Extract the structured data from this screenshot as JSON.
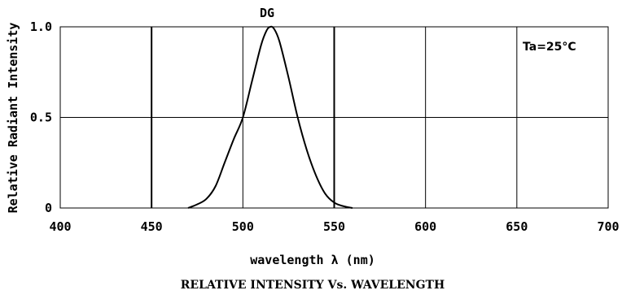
{
  "chart_data": {
    "type": "line",
    "title": "DG",
    "xlabel": "wavelength λ (nm)",
    "ylabel": "Relative Radiant Intensity",
    "caption": "RELATIVE INTENSITY Vs. WAVELENGTH",
    "annotation": "Ta=25°C",
    "xlim": [
      400,
      700
    ],
    "ylim": [
      0,
      1.0
    ],
    "x_ticks": [
      400,
      450,
      500,
      550,
      600,
      650,
      700
    ],
    "y_ticks": [
      0,
      0.5,
      1.0
    ],
    "x_tick_labels": [
      "400",
      "450",
      "500",
      "550",
      "600",
      "650",
      "700"
    ],
    "y_tick_labels": [
      "0",
      "0.5",
      "1.0"
    ],
    "grid": true,
    "series": [
      {
        "x": [
          470,
          475,
          480,
          485,
          490,
          495,
          500,
          505,
          510,
          513,
          515,
          517,
          520,
          525,
          530,
          535,
          540,
          545,
          550,
          555,
          560
        ],
        "y": [
          0.0,
          0.02,
          0.05,
          0.12,
          0.25,
          0.38,
          0.5,
          0.7,
          0.9,
          0.98,
          1.0,
          0.99,
          0.92,
          0.72,
          0.5,
          0.32,
          0.18,
          0.08,
          0.03,
          0.01,
          0.0
        ]
      }
    ]
  }
}
